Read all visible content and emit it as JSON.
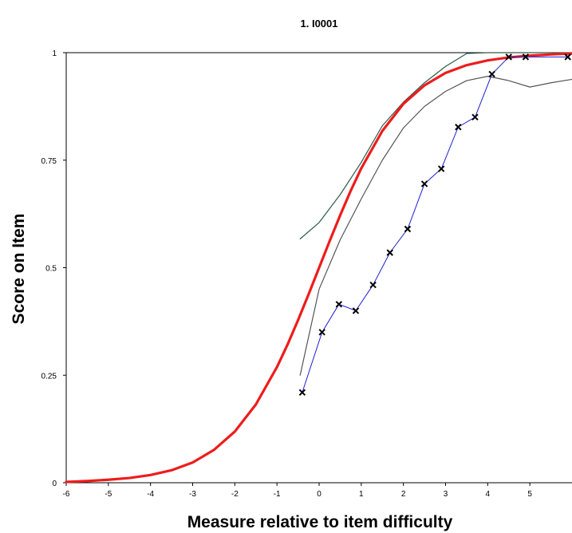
{
  "chart_data": {
    "type": "line",
    "title": "1. I0001",
    "xlabel": "Measure relative to item difficulty",
    "ylabel": "Score on Item",
    "xlim": [
      -6,
      6
    ],
    "ylim": [
      0,
      1
    ],
    "x_ticks": [
      -6,
      -5,
      -4,
      -3,
      -2,
      -1,
      0,
      1,
      2,
      3,
      4,
      5
    ],
    "y_ticks": [
      0,
      0.25,
      0.5,
      0.75,
      1
    ],
    "y_tick_labels": [
      "0",
      "0.25",
      "0.5",
      "0.75",
      "1"
    ],
    "grid": false,
    "legend": "none",
    "series": [
      {
        "role": "model-expected-curve",
        "color": "#ee1c1c",
        "x": [
          -6,
          -5.5,
          -5,
          -4.5,
          -4,
          -3.5,
          -3,
          -2.5,
          -2,
          -1.5,
          -1,
          -0.75,
          -0.5,
          -0.25,
          0,
          0.25,
          0.5,
          0.75,
          1,
          1.5,
          2,
          2.5,
          3,
          3.5,
          4,
          4.5,
          5,
          5.5,
          6
        ],
        "y": [
          0.002,
          0.004,
          0.007,
          0.011,
          0.018,
          0.029,
          0.047,
          0.076,
          0.119,
          0.182,
          0.269,
          0.321,
          0.378,
          0.438,
          0.5,
          0.562,
          0.622,
          0.679,
          0.731,
          0.818,
          0.881,
          0.924,
          0.953,
          0.971,
          0.982,
          0.989,
          0.993,
          0.996,
          0.998
        ]
      },
      {
        "role": "upper-confidence-band",
        "color": "#2d5a46",
        "x": [
          -0.45,
          0,
          0.5,
          1,
          1.5,
          2,
          2.5,
          3,
          3.5,
          4,
          4.5,
          5,
          5.5,
          6
        ],
        "y": [
          0.567,
          0.605,
          0.67,
          0.745,
          0.83,
          0.885,
          0.93,
          0.968,
          0.998,
          1.0,
          1.0,
          1.0,
          1.0,
          1.0
        ]
      },
      {
        "role": "lower-confidence-band",
        "color": "#555555",
        "x": [
          -0.45,
          0,
          0.5,
          1,
          1.5,
          2,
          2.5,
          3,
          3.5,
          4,
          4.5,
          5,
          5.5,
          6
        ],
        "y": [
          0.25,
          0.45,
          0.565,
          0.66,
          0.75,
          0.825,
          0.875,
          0.91,
          0.935,
          0.945,
          0.935,
          0.92,
          0.93,
          0.938
        ]
      },
      {
        "role": "empirical-observed",
        "color": "#1b1bd4",
        "marker": "x",
        "x": [
          -0.4,
          0.07,
          0.47,
          0.87,
          1.28,
          1.68,
          2.1,
          2.5,
          2.9,
          3.3,
          3.7,
          4.1,
          4.5,
          4.9,
          5.9
        ],
        "y": [
          0.21,
          0.35,
          0.415,
          0.4,
          0.46,
          0.535,
          0.59,
          0.695,
          0.73,
          0.827,
          0.85,
          0.95,
          0.99,
          0.99,
          0.99
        ]
      }
    ]
  }
}
